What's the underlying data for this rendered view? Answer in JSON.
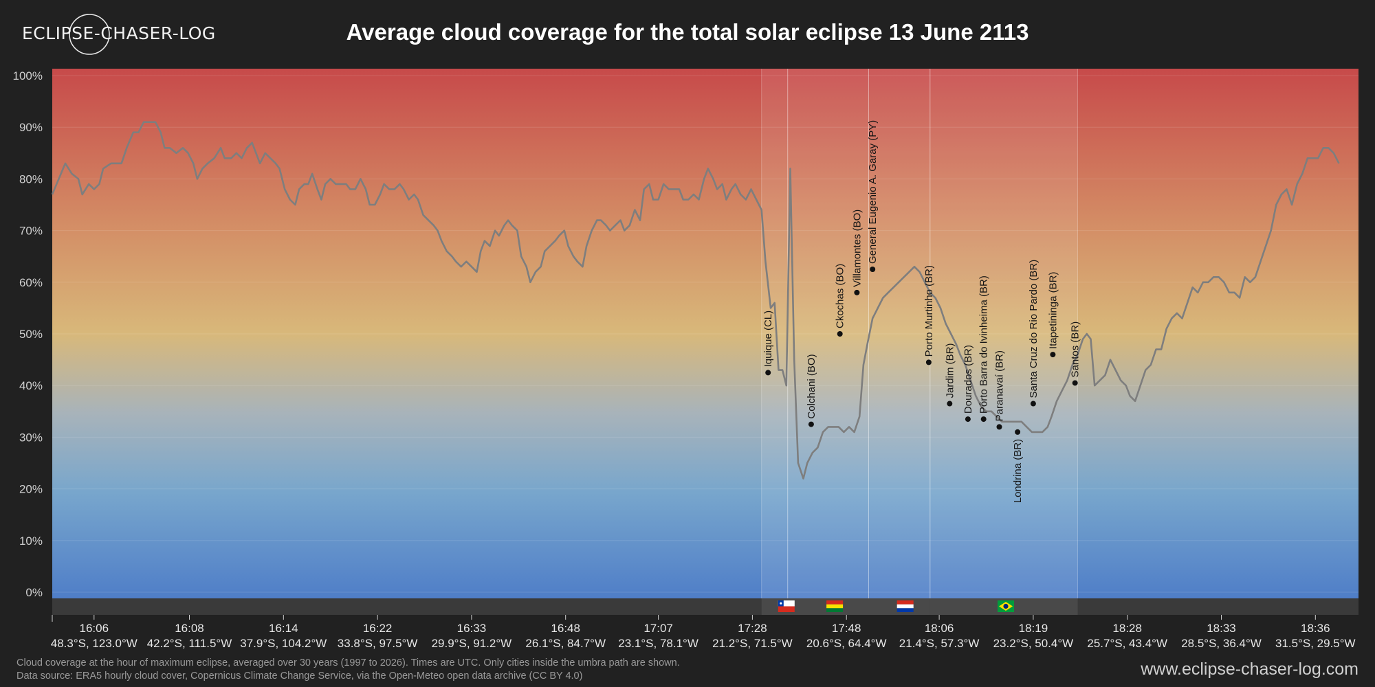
{
  "brand": {
    "logo_text": "ECLIPSE-CHASER-LOG",
    "site_url": "www.eclipse-chaser-log.com"
  },
  "footnote": {
    "line1": "Cloud coverage at the hour of maximum eclipse, averaged over 30 years (1997 to 2026). Times are UTC. Only cities inside the umbra path are shown.",
    "line2": "Data source: ERA5 hourly cloud cover, Copernicus Climate Change Service, via the Open-Meteo open data archive (CC BY 4.0)"
  },
  "colors": {
    "background": "#212121",
    "high_cloud": "#c74a4a",
    "mid_cloud": "#d8b87a",
    "low_cloud": "#4f7ec8",
    "line": "#7e7e7e"
  },
  "chart_data": {
    "type": "line",
    "title": "Average cloud coverage for the total solar eclipse 13 June 2113",
    "x_unit": "position along eclipse path (0-100)",
    "xlim": [
      0,
      100
    ],
    "ylim": [
      0,
      100
    ],
    "y_ticks": [
      "0%",
      "10%",
      "20%",
      "30%",
      "40%",
      "50%",
      "60%",
      "70%",
      "80%",
      "90%",
      "100%"
    ],
    "grid": true,
    "x_ticks": [
      {
        "x": 3.2,
        "time": "16:06",
        "coord": "48.3°S, 123.0°W"
      },
      {
        "x": 10.5,
        "time": "16:08",
        "coord": "42.2°S, 111.5°W"
      },
      {
        "x": 17.7,
        "time": "16:14",
        "coord": "37.9°S, 104.2°W"
      },
      {
        "x": 24.9,
        "time": "16:22",
        "coord": "33.8°S, 97.5°W"
      },
      {
        "x": 32.1,
        "time": "16:33",
        "coord": "29.9°S, 91.2°W"
      },
      {
        "x": 39.3,
        "time": "16:48",
        "coord": "26.1°S, 84.7°W"
      },
      {
        "x": 46.4,
        "time": "17:07",
        "coord": "23.1°S, 78.1°W"
      },
      {
        "x": 53.6,
        "time": "17:28",
        "coord": "21.2°S, 71.5°W"
      },
      {
        "x": 60.8,
        "time": "17:48",
        "coord": "20.6°S, 64.4°W"
      },
      {
        "x": 67.9,
        "time": "18:06",
        "coord": "21.4°S, 57.3°W"
      },
      {
        "x": 75.1,
        "time": "18:19",
        "coord": "23.2°S, 50.4°W"
      },
      {
        "x": 82.3,
        "time": "18:28",
        "coord": "25.7°S, 43.4°W"
      },
      {
        "x": 89.5,
        "time": "18:33",
        "coord": "28.5°S, 36.4°W"
      },
      {
        "x": 96.7,
        "time": "18:36",
        "coord": "31.5°S, 29.5°W"
      }
    ],
    "country_bands": [
      {
        "country": "Chile",
        "flag": "chile-flag",
        "x_start": 54.3,
        "x_end": 56.3
      },
      {
        "country": "Bolivia",
        "flag": "bolivia-flag",
        "x_start": 56.3,
        "x_end": 62.5
      },
      {
        "country": "Paraguay",
        "flag": "paraguay-flag",
        "x_start": 62.5,
        "x_end": 67.2
      },
      {
        "country": "Brazil",
        "flag": "brazil-flag",
        "x_start": 67.2,
        "x_end": 78.5
      }
    ],
    "series": [
      {
        "values": [
          [
            0,
            77
          ],
          [
            0.5,
            80
          ],
          [
            1.0,
            83
          ],
          [
            1.5,
            81
          ],
          [
            2.0,
            80
          ],
          [
            2.3,
            77
          ],
          [
            2.8,
            79
          ],
          [
            3.2,
            78
          ],
          [
            3.6,
            79
          ],
          [
            3.9,
            82
          ],
          [
            4.5,
            83
          ],
          [
            5.0,
            83
          ],
          [
            5.3,
            83
          ],
          [
            5.7,
            86
          ],
          [
            6.2,
            89
          ],
          [
            6.6,
            89
          ],
          [
            7.0,
            91
          ],
          [
            7.5,
            91
          ],
          [
            7.9,
            91
          ],
          [
            8.3,
            89
          ],
          [
            8.6,
            86
          ],
          [
            9.0,
            86
          ],
          [
            9.5,
            85
          ],
          [
            10.0,
            86
          ],
          [
            10.4,
            85
          ],
          [
            10.8,
            83
          ],
          [
            11.1,
            80
          ],
          [
            11.5,
            82
          ],
          [
            11.9,
            83
          ],
          [
            12.4,
            84
          ],
          [
            12.9,
            86
          ],
          [
            13.2,
            84
          ],
          [
            13.7,
            84
          ],
          [
            14.1,
            85
          ],
          [
            14.5,
            84
          ],
          [
            14.9,
            86
          ],
          [
            15.3,
            87
          ],
          [
            15.6,
            85
          ],
          [
            15.9,
            83
          ],
          [
            16.3,
            85
          ],
          [
            16.7,
            84
          ],
          [
            17.1,
            83
          ],
          [
            17.4,
            82
          ],
          [
            17.8,
            78
          ],
          [
            18.2,
            76
          ],
          [
            18.6,
            75
          ],
          [
            18.9,
            78
          ],
          [
            19.3,
            79
          ],
          [
            19.6,
            79
          ],
          [
            19.9,
            81
          ],
          [
            20.3,
            78
          ],
          [
            20.6,
            76
          ],
          [
            20.9,
            79
          ],
          [
            21.3,
            80
          ],
          [
            21.7,
            79
          ],
          [
            22.1,
            79
          ],
          [
            22.5,
            79
          ],
          [
            22.8,
            78
          ],
          [
            23.2,
            78
          ],
          [
            23.6,
            80
          ],
          [
            24.0,
            78
          ],
          [
            24.3,
            75
          ],
          [
            24.7,
            75
          ],
          [
            25.1,
            77
          ],
          [
            25.4,
            79
          ],
          [
            25.8,
            78
          ],
          [
            26.2,
            78
          ],
          [
            26.6,
            79
          ],
          [
            26.9,
            78
          ],
          [
            27.3,
            76
          ],
          [
            27.7,
            77
          ],
          [
            28.0,
            76
          ],
          [
            28.4,
            73
          ],
          [
            28.8,
            72
          ],
          [
            29.2,
            71
          ],
          [
            29.5,
            70
          ],
          [
            29.8,
            68
          ],
          [
            30.2,
            66
          ],
          [
            30.6,
            65
          ],
          [
            30.9,
            64
          ],
          [
            31.3,
            63
          ],
          [
            31.7,
            64
          ],
          [
            32.1,
            63
          ],
          [
            32.5,
            62
          ],
          [
            32.8,
            66
          ],
          [
            33.1,
            68
          ],
          [
            33.5,
            67
          ],
          [
            33.9,
            70
          ],
          [
            34.2,
            69
          ],
          [
            34.6,
            71
          ],
          [
            34.9,
            72
          ],
          [
            35.2,
            71
          ],
          [
            35.6,
            70
          ],
          [
            35.9,
            65
          ],
          [
            36.3,
            63
          ],
          [
            36.6,
            60
          ],
          [
            37.0,
            62
          ],
          [
            37.4,
            63
          ],
          [
            37.7,
            66
          ],
          [
            38.1,
            67
          ],
          [
            38.5,
            68
          ],
          [
            38.8,
            69
          ],
          [
            39.2,
            70
          ],
          [
            39.5,
            67
          ],
          [
            39.9,
            65
          ],
          [
            40.2,
            64
          ],
          [
            40.6,
            63
          ],
          [
            40.9,
            67
          ],
          [
            41.3,
            70
          ],
          [
            41.7,
            72
          ],
          [
            42.0,
            72
          ],
          [
            42.4,
            71
          ],
          [
            42.7,
            70
          ],
          [
            43.1,
            71
          ],
          [
            43.5,
            72
          ],
          [
            43.8,
            70
          ],
          [
            44.2,
            71
          ],
          [
            44.6,
            74
          ],
          [
            45.0,
            72
          ],
          [
            45.3,
            78
          ],
          [
            45.7,
            79
          ],
          [
            46.0,
            76
          ],
          [
            46.4,
            76
          ],
          [
            46.8,
            79
          ],
          [
            47.2,
            78
          ],
          [
            47.6,
            78
          ],
          [
            48.0,
            78
          ],
          [
            48.3,
            76
          ],
          [
            48.7,
            76
          ],
          [
            49.1,
            77
          ],
          [
            49.5,
            76
          ],
          [
            49.9,
            80
          ],
          [
            50.2,
            82
          ],
          [
            50.6,
            80
          ],
          [
            50.9,
            78
          ],
          [
            51.3,
            79
          ],
          [
            51.6,
            76
          ],
          [
            52.0,
            78
          ],
          [
            52.3,
            79
          ],
          [
            52.7,
            77
          ],
          [
            53.1,
            76
          ],
          [
            53.5,
            78
          ],
          [
            53.9,
            76
          ],
          [
            54.3,
            74
          ],
          [
            54.6,
            64
          ],
          [
            55.0,
            55
          ],
          [
            55.3,
            56
          ],
          [
            55.6,
            43
          ],
          [
            55.9,
            43
          ],
          [
            56.2,
            40
          ],
          [
            56.5,
            82
          ],
          [
            56.8,
            45
          ],
          [
            57.1,
            25
          ],
          [
            57.5,
            22
          ],
          [
            57.8,
            25
          ],
          [
            58.2,
            27
          ],
          [
            58.6,
            28
          ],
          [
            59.0,
            31
          ],
          [
            59.4,
            32
          ],
          [
            59.8,
            32
          ],
          [
            60.2,
            32
          ],
          [
            60.6,
            31
          ],
          [
            61.0,
            32
          ],
          [
            61.4,
            31
          ],
          [
            61.8,
            34
          ],
          [
            62.1,
            44
          ],
          [
            62.4,
            48
          ],
          [
            62.8,
            53
          ],
          [
            63.2,
            55
          ],
          [
            63.6,
            57
          ],
          [
            64.0,
            58
          ],
          [
            64.4,
            59
          ],
          [
            64.8,
            60
          ],
          [
            65.2,
            61
          ],
          [
            65.6,
            62
          ],
          [
            66.0,
            63
          ],
          [
            66.4,
            62
          ],
          [
            66.8,
            60
          ],
          [
            67.2,
            58
          ],
          [
            67.6,
            57
          ],
          [
            68.0,
            55
          ],
          [
            68.4,
            52
          ],
          [
            68.8,
            50
          ],
          [
            69.2,
            48
          ],
          [
            69.5,
            46
          ],
          [
            69.9,
            44
          ],
          [
            70.3,
            41
          ],
          [
            70.7,
            38
          ],
          [
            71.1,
            36
          ],
          [
            71.5,
            35
          ],
          [
            71.9,
            35
          ],
          [
            72.3,
            34
          ],
          [
            72.7,
            33
          ],
          [
            73.0,
            33
          ],
          [
            73.4,
            33
          ],
          [
            73.8,
            33
          ],
          [
            74.2,
            33
          ],
          [
            74.6,
            32
          ],
          [
            75.0,
            31
          ],
          [
            75.4,
            31
          ],
          [
            75.8,
            31
          ],
          [
            76.2,
            32
          ],
          [
            76.5,
            34
          ],
          [
            76.9,
            37
          ],
          [
            77.3,
            39
          ],
          [
            77.7,
            41
          ],
          [
            78.1,
            44
          ],
          [
            78.5,
            46
          ],
          [
            78.9,
            49
          ],
          [
            79.2,
            50
          ],
          [
            79.5,
            49
          ],
          [
            79.8,
            40
          ],
          [
            80.2,
            41
          ],
          [
            80.6,
            42
          ],
          [
            81.0,
            45
          ],
          [
            81.4,
            43
          ],
          [
            81.8,
            41
          ],
          [
            82.2,
            40
          ],
          [
            82.5,
            38
          ],
          [
            82.9,
            37
          ],
          [
            83.3,
            40
          ],
          [
            83.7,
            43
          ],
          [
            84.1,
            44
          ],
          [
            84.5,
            47
          ],
          [
            84.9,
            47
          ],
          [
            85.3,
            51
          ],
          [
            85.7,
            53
          ],
          [
            86.1,
            54
          ],
          [
            86.5,
            53
          ],
          [
            86.9,
            56
          ],
          [
            87.3,
            59
          ],
          [
            87.7,
            58
          ],
          [
            88.1,
            60
          ],
          [
            88.5,
            60
          ],
          [
            88.9,
            61
          ],
          [
            89.3,
            61
          ],
          [
            89.7,
            60
          ],
          [
            90.1,
            58
          ],
          [
            90.5,
            58
          ],
          [
            90.9,
            57
          ],
          [
            91.3,
            61
          ],
          [
            91.7,
            60
          ],
          [
            92.1,
            61
          ],
          [
            92.5,
            64
          ],
          [
            92.9,
            67
          ],
          [
            93.3,
            70
          ],
          [
            93.7,
            75
          ],
          [
            94.1,
            77
          ],
          [
            94.5,
            78
          ],
          [
            94.9,
            75
          ],
          [
            95.3,
            79
          ],
          [
            95.7,
            81
          ],
          [
            96.1,
            84
          ],
          [
            96.5,
            84
          ],
          [
            96.9,
            84
          ],
          [
            97.3,
            86
          ],
          [
            97.7,
            86
          ],
          [
            98.1,
            85
          ],
          [
            98.5,
            83
          ]
        ]
      }
    ],
    "cities": [
      {
        "name": "Iquique (CL)",
        "x": 54.8,
        "y": 42.5,
        "label": "up"
      },
      {
        "name": "Colchani (BO)",
        "x": 58.1,
        "y": 32.5,
        "label": "up"
      },
      {
        "name": "Ckochas (BO)",
        "x": 60.3,
        "y": 50.0,
        "label": "up"
      },
      {
        "name": "Villamontes (BO)",
        "x": 61.6,
        "y": 58.0,
        "label": "up"
      },
      {
        "name": "General Eugenio A. Garay (PY)",
        "x": 62.8,
        "y": 62.5,
        "label": "up"
      },
      {
        "name": "Porto Murtinho (BR)",
        "x": 67.1,
        "y": 44.5,
        "label": "up"
      },
      {
        "name": "Jardim (BR)",
        "x": 68.7,
        "y": 36.5,
        "label": "up"
      },
      {
        "name": "Dourados (BR)",
        "x": 70.1,
        "y": 33.5,
        "label": "up"
      },
      {
        "name": "Pôrto Barra do Ivinheima (BR)",
        "x": 71.3,
        "y": 33.5,
        "label": "up"
      },
      {
        "name": "Paranavaí (BR)",
        "x": 72.5,
        "y": 32.0,
        "label": "up"
      },
      {
        "name": "Londrina (BR)",
        "x": 73.9,
        "y": 31.0,
        "label": "down"
      },
      {
        "name": "Santa Cruz do Rio Pardo (BR)",
        "x": 75.1,
        "y": 36.5,
        "label": "up"
      },
      {
        "name": "Itapetininga (BR)",
        "x": 76.6,
        "y": 46.0,
        "label": "up"
      },
      {
        "name": "Santos (BR)",
        "x": 78.3,
        "y": 40.5,
        "label": "up"
      }
    ]
  }
}
